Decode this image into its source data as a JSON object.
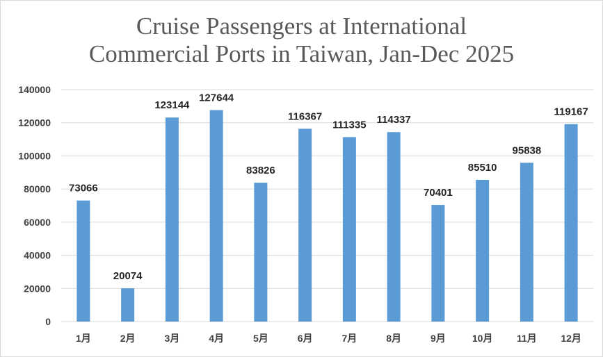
{
  "chart_data": {
    "type": "bar",
    "title_lines": [
      "Cruise Passengers at International",
      "Commercial Ports in Taiwan, Jan-Dec 2025"
    ],
    "categories": [
      "1月",
      "2月",
      "3月",
      "4月",
      "5月",
      "6月",
      "7月",
      "8月",
      "9月",
      "10月",
      "11月",
      "12月"
    ],
    "values": [
      73066,
      20074,
      123144,
      127644,
      83826,
      116367,
      111335,
      114337,
      70401,
      85510,
      95838,
      119167
    ],
    "ylim": [
      0,
      140000
    ],
    "yticks": [
      "0",
      "20000",
      "40000",
      "60000",
      "80000",
      "100000",
      "120000",
      "140000"
    ],
    "grid": true,
    "legend": "none",
    "bar_color": "#5b9bd5",
    "grid_color": "#d9d9d9"
  }
}
